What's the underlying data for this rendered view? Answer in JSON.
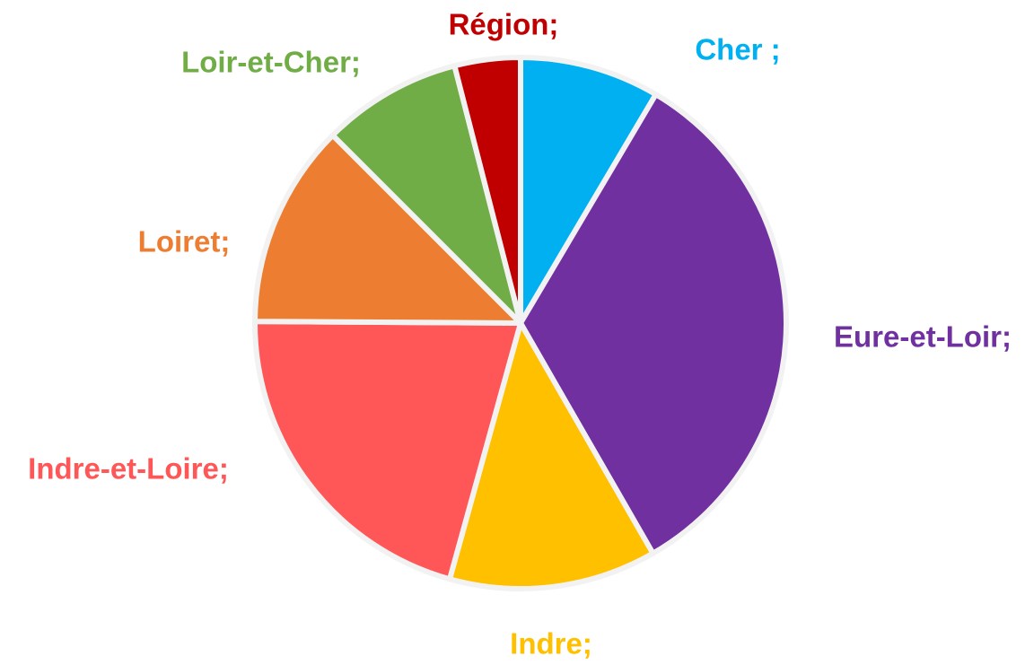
{
  "chart_data": {
    "type": "pie",
    "categories": [
      "Cher ;",
      "Eure-et-Loir;",
      "Indre;",
      "Indre-et-Loire;",
      "Loiret;",
      "Loir-et-Cher;",
      "Région;"
    ],
    "values": [
      8.5,
      33.2,
      12.6,
      20.8,
      12.4,
      8.5,
      4
    ],
    "colors": [
      "#00b0f0",
      "#7030a0",
      "#ffc000",
      "#ff5757",
      "#ed7d31",
      "#70ad47",
      "#c00000"
    ]
  }
}
